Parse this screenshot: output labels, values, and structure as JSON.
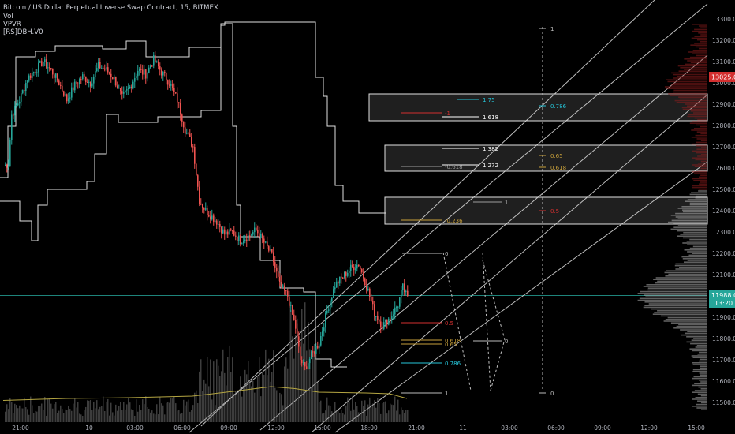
{
  "header": {
    "title": "Bitcoin / US Dollar Perpetual Inverse Swap Contract, 15, BITMEX",
    "indicators": [
      "Vol",
      "VPVR",
      "[RS]DBH.V0"
    ]
  },
  "axis": {
    "price_ticks": [
      "13300.0",
      "13200.0",
      "13100.0",
      "13000.0",
      "12900.0",
      "12800.0",
      "12700.0",
      "12600.0",
      "12500.0",
      "12400.0",
      "12300.0",
      "12200.0",
      "12100.0",
      "12000.0",
      "11900.0",
      "11800.0",
      "11700.0",
      "11600.0",
      "11500.0"
    ],
    "time_ticks": [
      "21:00",
      "10",
      "03:00",
      "06:00",
      "09:00",
      "12:00",
      "15:00",
      "18:00",
      "21:00",
      "11",
      "03:00",
      "06:00",
      "09:00",
      "12:00",
      "15:00"
    ],
    "badge_red": "13025.0",
    "badge_green_price": "11988.0",
    "badge_green_time": "13:20"
  },
  "colors": {
    "bull": "#26a69a",
    "bear": "#ef5350",
    "background": "#000000",
    "level_fill": "#ffffff",
    "fib_cyan": "#26c6da",
    "fib_gold": "#c9a13b",
    "fib_red": "#d32f2f",
    "vol_ma": "#b5a642"
  },
  "fib_labels": {
    "l175": "1.75",
    "l1618": "1.618",
    "l1382": "1.382",
    "l1272": "1.272",
    "l1": "1",
    "lm1": "-1",
    "lm0618": "-0.618",
    "lm0236": "-0.236",
    "l0": "0",
    "l05": "0.5",
    "l0618": "0.618",
    "l065": "0.65",
    "l0786": "0.786",
    "l1b": "1",
    "r1top": "1",
    "r0786": "0.786",
    "r065": "0.65",
    "r0618": "0.618",
    "r05": "0.5",
    "r0": "0",
    "r0b": "0"
  },
  "chart_data": {
    "type": "candlestick",
    "title": "Bitcoin / US Dollar Perpetual Inverse Swap Contract, 15, BITMEX",
    "xlabel": "",
    "ylabel": "",
    "ylim": [
      11450,
      13370
    ],
    "y_ticks": [
      11500,
      11600,
      11700,
      11800,
      11900,
      12000,
      12100,
      12200,
      12300,
      12400,
      12500,
      12600,
      12700,
      12800,
      12900,
      13000,
      13100,
      13200,
      13300
    ],
    "last_price": 11988.0,
    "marked_price": 13025.0,
    "close_path_knots": [
      [
        0,
        12610
      ],
      [
        3,
        12620
      ],
      [
        5,
        12850
      ],
      [
        10,
        12920
      ],
      [
        15,
        13020
      ],
      [
        20,
        13060
      ],
      [
        25,
        13100
      ],
      [
        30,
        13060
      ],
      [
        35,
        13000
      ],
      [
        40,
        12920
      ],
      [
        45,
        12990
      ],
      [
        50,
        13030
      ],
      [
        55,
        13000
      ],
      [
        60,
        13080
      ],
      [
        65,
        13060
      ],
      [
        70,
        13020
      ],
      [
        75,
        12930
      ],
      [
        80,
        12980
      ],
      [
        85,
        13060
      ],
      [
        90,
        13040
      ],
      [
        95,
        13110
      ],
      [
        100,
        13050
      ],
      [
        105,
        13000
      ],
      [
        110,
        12920
      ],
      [
        115,
        12780
      ],
      [
        120,
        12700
      ],
      [
        124,
        12450
      ],
      [
        128,
        12400
      ],
      [
        135,
        12350
      ],
      [
        140,
        12290
      ],
      [
        145,
        12300
      ],
      [
        150,
        12260
      ],
      [
        155,
        12280
      ],
      [
        160,
        12310
      ],
      [
        165,
        12250
      ],
      [
        170,
        12190
      ],
      [
        175,
        12050
      ],
      [
        180,
        12000
      ],
      [
        185,
        11850
      ],
      [
        188,
        11700
      ],
      [
        191,
        11660
      ],
      [
        195,
        11720
      ],
      [
        200,
        11780
      ],
      [
        205,
        11930
      ],
      [
        210,
        12050
      ],
      [
        215,
        12090
      ],
      [
        220,
        12130
      ],
      [
        225,
        12150
      ],
      [
        230,
        12050
      ],
      [
        235,
        11920
      ],
      [
        240,
        11860
      ],
      [
        245,
        11900
      ],
      [
        250,
        11960
      ],
      [
        253,
        12040
      ],
      [
        256,
        11988
      ]
    ],
    "volume_ma_knots": [
      [
        0,
        55
      ],
      [
        40,
        60
      ],
      [
        80,
        62
      ],
      [
        120,
        66
      ],
      [
        150,
        80
      ],
      [
        170,
        90
      ],
      [
        185,
        85
      ],
      [
        200,
        76
      ],
      [
        230,
        74
      ],
      [
        245,
        72
      ],
      [
        256,
        60
      ]
    ]
  }
}
